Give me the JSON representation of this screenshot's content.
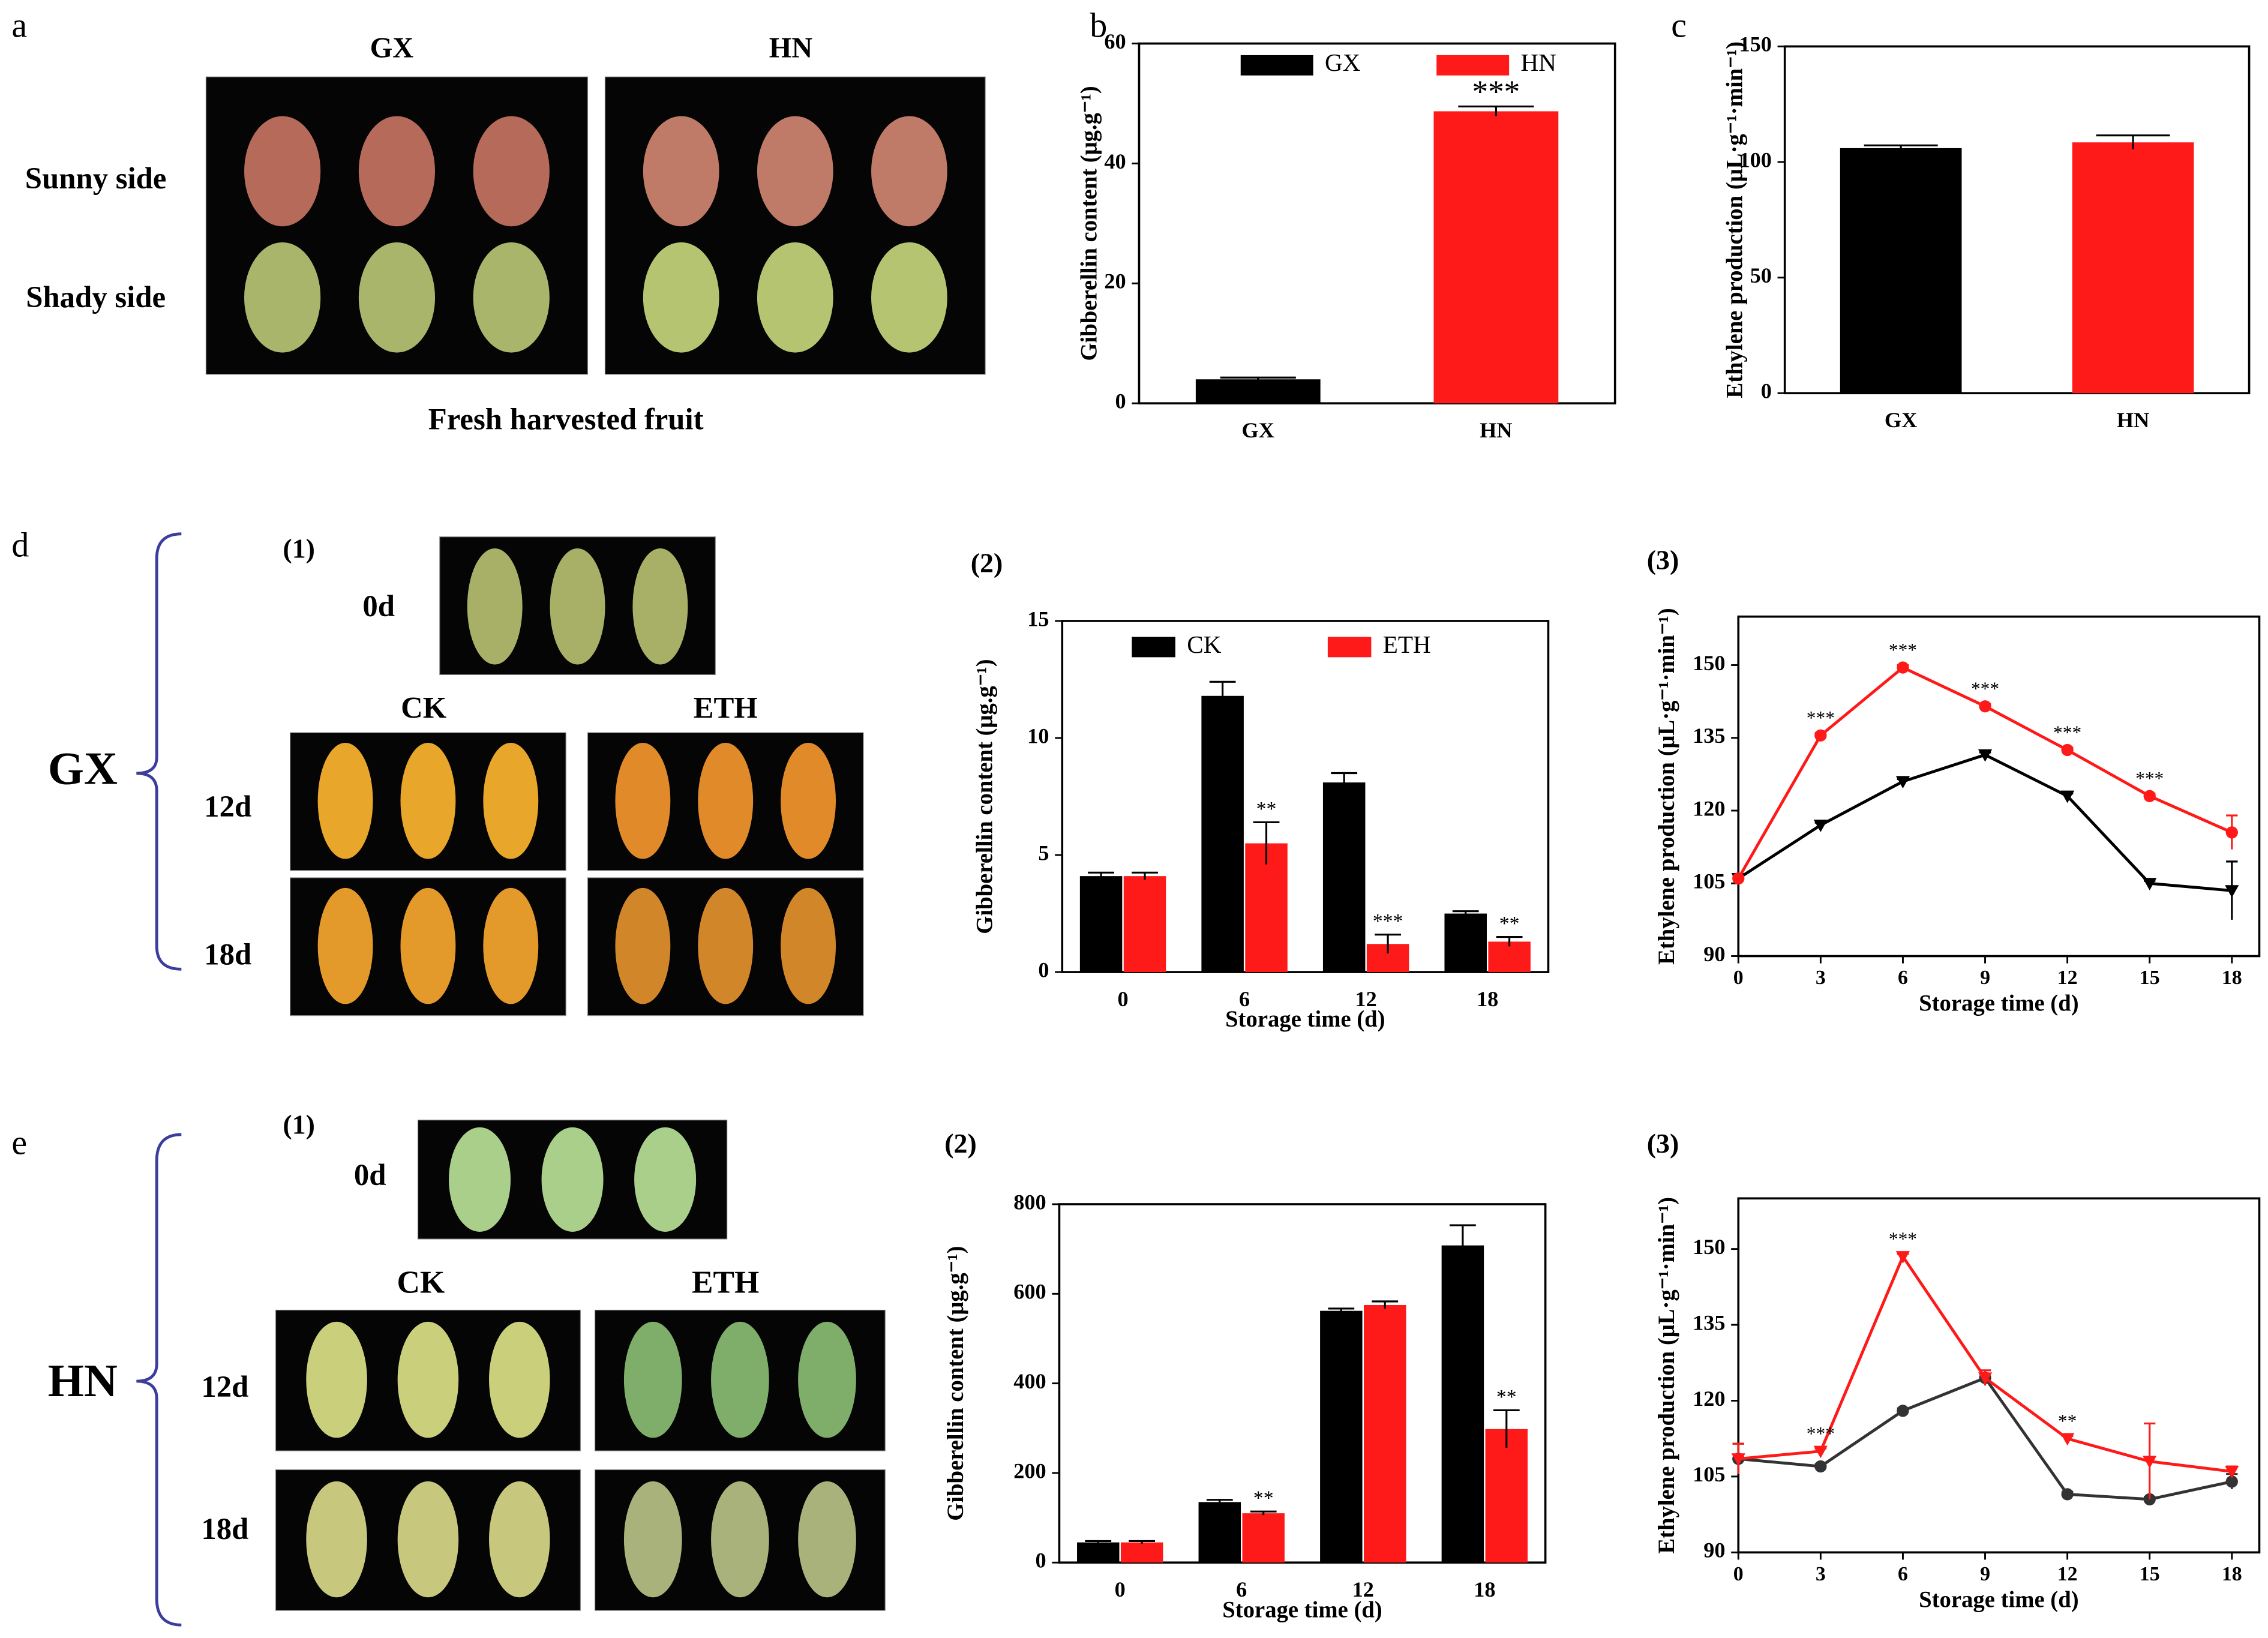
{
  "figure_panels": [
    {
      "label": "a",
      "column_labels": [
        "GX",
        "HN"
      ],
      "row_labels": [
        "Sunny side",
        "Shady side"
      ],
      "caption": "Fresh harvested fruit"
    },
    {
      "label": "d",
      "group": "GX",
      "sublabel": "(1)",
      "initial": "0d",
      "column_labels": [
        "CK",
        "ETH"
      ],
      "row_labels": [
        "12d",
        "18d"
      ]
    },
    {
      "label": "e",
      "group": "HN",
      "sublabel": "(1)",
      "initial": "0d",
      "column_labels": [
        "CK",
        "ETH"
      ],
      "row_labels": [
        "12d",
        "18d"
      ]
    }
  ],
  "chart_data": [
    {
      "type": "bar",
      "panel_label": "b",
      "y_label": "Gibberellin content (μg.g⁻¹)",
      "categories": [
        "GX",
        "HN"
      ],
      "series": [
        {
          "name": "GX",
          "color": "#000000",
          "values": [
            4.0,
            null
          ],
          "errors": [
            0.3,
            null
          ]
        },
        {
          "name": "HN",
          "color": "#ff1a1a",
          "values": [
            null,
            48.7
          ],
          "errors": [
            null,
            0.8
          ],
          "significance_labels": [
            null,
            "***"
          ]
        }
      ],
      "ylim": [
        0,
        60
      ],
      "yticks": [
        0,
        20,
        40,
        60
      ],
      "legend": true
    },
    {
      "type": "bar",
      "panel_label": "c",
      "y_label": "Ethylene production (μL·g⁻¹·min⁻¹)",
      "categories": [
        "GX",
        "HN"
      ],
      "series": [
        {
          "color": "#000000",
          "values": [
            106,
            null
          ],
          "errors": [
            1.2,
            null
          ]
        },
        {
          "color": "#ff1a1a",
          "values": [
            null,
            108.5
          ],
          "errors": [
            null,
            3
          ]
        }
      ],
      "ylim": [
        0,
        150
      ],
      "yticks": [
        0,
        50,
        100,
        150
      ],
      "legend": false
    },
    {
      "type": "bar",
      "panel_label": "(2)",
      "y_label": "Gibberellin content (μg.g⁻¹)",
      "x_label": "Storage time (d)",
      "categories": [
        "0",
        "6",
        "12",
        "18"
      ],
      "series": [
        {
          "name": "CK",
          "color": "#000000",
          "values": [
            4.1,
            11.8,
            8.1,
            2.5
          ],
          "errors": [
            0.15,
            0.6,
            0.4,
            0.1
          ]
        },
        {
          "name": "ETH",
          "color": "#ff1a1a",
          "values": [
            4.1,
            5.5,
            1.2,
            1.3
          ],
          "errors": [
            0.15,
            0.9,
            0.4,
            0.2
          ],
          "significance_labels": [
            null,
            "**",
            "***",
            "**"
          ]
        }
      ],
      "ylim": [
        0,
        15
      ],
      "yticks": [
        0,
        5,
        10,
        15
      ],
      "legend": true
    },
    {
      "type": "line",
      "panel_label": "(3)",
      "y_label": "Ethylene production (μL·g⁻¹·min⁻¹)",
      "x_label": "Storage time (d)",
      "x": [
        0,
        3,
        6,
        9,
        12,
        15,
        18
      ],
      "series": [
        {
          "color": "#000000",
          "marker": "triangle-down",
          "values": [
            106,
            117,
            126,
            131.5,
            123,
            105,
            103.5
          ],
          "errors": [
            0.5,
            0.5,
            0.5,
            0.5,
            0.5,
            0.5,
            6
          ]
        },
        {
          "color": "#ff1a1a",
          "marker": "circle",
          "values": [
            106,
            135.5,
            149.5,
            141.5,
            132.5,
            123,
            115.5
          ],
          "errors": [
            0.5,
            0.5,
            0.5,
            0.5,
            0.5,
            0.5,
            3.5
          ],
          "significance_labels": [
            null,
            "***",
            "***",
            "***",
            "***",
            "***",
            null
          ]
        }
      ],
      "xlim": [
        0,
        19
      ],
      "xticks": [
        0,
        3,
        6,
        9,
        12,
        15,
        18
      ],
      "ylim": [
        90,
        160
      ],
      "yticks": [
        90,
        105,
        120,
        135,
        150
      ]
    },
    {
      "type": "bar",
      "panel_label": "(2)",
      "y_label": "Gibberellin content (μg.g⁻¹)",
      "x_label": "Storage time (d)",
      "categories": [
        "0",
        "6",
        "12",
        "18"
      ],
      "series": [
        {
          "color": "#000000",
          "values": [
            45,
            135,
            562,
            708
          ],
          "errors": [
            3,
            5,
            5,
            45
          ]
        },
        {
          "color": "#ff1a1a",
          "values": [
            45,
            110,
            575,
            298
          ],
          "errors": [
            3,
            4,
            8,
            42
          ],
          "significance_labels": [
            null,
            "**",
            null,
            "**"
          ]
        }
      ],
      "ylim": [
        0,
        800
      ],
      "yticks": [
        0,
        200,
        400,
        600,
        800
      ],
      "legend": false
    },
    {
      "type": "line",
      "panel_label": "(3)",
      "y_label": "Ethylene production (μL·g⁻¹·min⁻¹)",
      "x_label": "Storage time (d)",
      "x": [
        0,
        3,
        6,
        9,
        12,
        15,
        18
      ],
      "series": [
        {
          "color": "#333333",
          "marker": "circle",
          "values": [
            108.5,
            107,
            118,
            124.5,
            101.5,
            100.5,
            104
          ],
          "errors": [
            3,
            0.5,
            0.5,
            1.5,
            0.5,
            0.5,
            1.5
          ]
        },
        {
          "color": "#ff1a1a",
          "marker": "triangle-down",
          "values": [
            108.5,
            110,
            148.5,
            124.5,
            112.5,
            108,
            106
          ],
          "errors": [
            3,
            0.5,
            0.5,
            1.5,
            0.5,
            7.5,
            1
          ],
          "significance_labels": [
            null,
            "***",
            "***",
            null,
            "**",
            null,
            null
          ]
        }
      ],
      "xlim": [
        0,
        19
      ],
      "xticks": [
        0,
        3,
        6,
        9,
        12,
        15,
        18
      ],
      "ylim": [
        90,
        160
      ],
      "yticks": [
        90,
        105,
        120,
        135,
        150
      ]
    }
  ]
}
